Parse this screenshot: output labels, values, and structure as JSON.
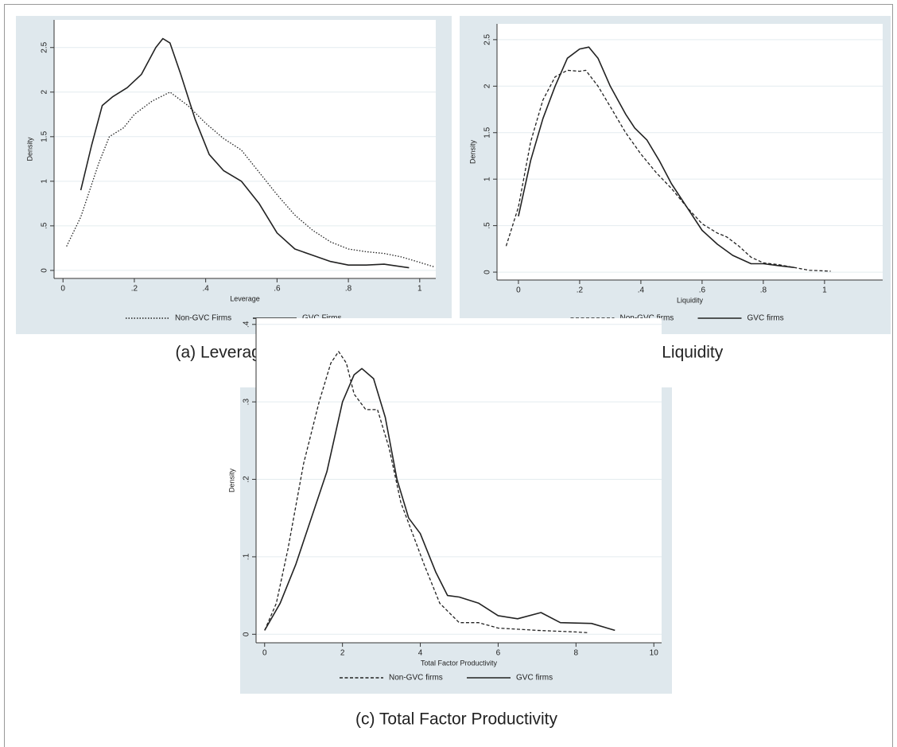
{
  "chart_data": [
    {
      "type": "line",
      "title": "(a) Leverage",
      "xlabel": "Leverage",
      "ylabel": "Density",
      "xlim": [
        -0.025,
        1.045
      ],
      "ylim": [
        -0.09,
        2.81
      ],
      "xticks": [
        0,
        {
          "value": 0.2,
          "label": ".2"
        },
        {
          "value": 0.4,
          "label": ".4"
        },
        {
          "value": 0.6,
          "label": ".6"
        },
        {
          "value": 0.8,
          "label": ".8"
        },
        1
      ],
      "yticks": [
        0,
        {
          "value": 0.5,
          "label": ".5"
        },
        1,
        1.5,
        2,
        2.5
      ],
      "grid": true,
      "legend": "bottom",
      "series": [
        {
          "name": "Non-GVC Firms",
          "color": "#222222",
          "dash": "dotted",
          "x": [
            0.01,
            0.05,
            0.1,
            0.13,
            0.17,
            0.2,
            0.25,
            0.3,
            0.35,
            0.4,
            0.45,
            0.5,
            0.55,
            0.6,
            0.65,
            0.7,
            0.75,
            0.8,
            0.85,
            0.9,
            0.95,
            1.0,
            1.04
          ],
          "values": [
            0.27,
            0.6,
            1.2,
            1.5,
            1.6,
            1.75,
            1.9,
            2.0,
            1.85,
            1.65,
            1.48,
            1.35,
            1.1,
            0.85,
            0.62,
            0.45,
            0.32,
            0.24,
            0.21,
            0.19,
            0.15,
            0.09,
            0.04
          ]
        },
        {
          "name": "GVC Firms",
          "color": "#222222",
          "dash": "solid",
          "x": [
            0.05,
            0.08,
            0.11,
            0.14,
            0.18,
            0.22,
            0.26,
            0.28,
            0.3,
            0.33,
            0.37,
            0.41,
            0.45,
            0.5,
            0.55,
            0.6,
            0.65,
            0.7,
            0.75,
            0.8,
            0.85,
            0.9,
            0.97
          ],
          "values": [
            0.9,
            1.4,
            1.85,
            1.95,
            2.05,
            2.2,
            2.5,
            2.6,
            2.55,
            2.2,
            1.7,
            1.3,
            1.12,
            1.0,
            0.75,
            0.42,
            0.24,
            0.17,
            0.1,
            0.06,
            0.06,
            0.07,
            0.03
          ]
        }
      ]
    },
    {
      "type": "line",
      "title": "(a) Liquidity",
      "xlabel": "Liquidity",
      "ylabel": "Density",
      "xlim": [
        -0.07,
        1.19
      ],
      "ylim": [
        -0.085,
        2.67
      ],
      "xticks": [
        0,
        {
          "value": 0.2,
          "label": ".2"
        },
        {
          "value": 0.4,
          "label": ".4"
        },
        {
          "value": 0.6,
          "label": ".6"
        },
        {
          "value": 0.8,
          "label": ".8"
        },
        1
      ],
      "yticks": [
        0,
        {
          "value": 0.5,
          "label": ".5"
        },
        1,
        1.5,
        2,
        2.5
      ],
      "grid": true,
      "legend": "bottom",
      "series": [
        {
          "name": "Non-GVC firms",
          "color": "#222222",
          "dash": "dashed",
          "x": [
            -0.04,
            0,
            0.04,
            0.08,
            0.12,
            0.16,
            0.2,
            0.22,
            0.26,
            0.3,
            0.35,
            0.4,
            0.45,
            0.5,
            0.55,
            0.6,
            0.65,
            0.68,
            0.72,
            0.76,
            0.8,
            0.85,
            0.9,
            0.95,
            1.02
          ],
          "values": [
            0.28,
            0.7,
            1.4,
            1.85,
            2.1,
            2.17,
            2.16,
            2.17,
            2.0,
            1.78,
            1.5,
            1.27,
            1.07,
            0.9,
            0.7,
            0.52,
            0.42,
            0.38,
            0.28,
            0.16,
            0.1,
            0.08,
            0.05,
            0.02,
            0.01
          ]
        },
        {
          "name": "GVC firms",
          "color": "#222222",
          "dash": "solid",
          "x": [
            0,
            0.04,
            0.08,
            0.12,
            0.16,
            0.2,
            0.23,
            0.26,
            0.3,
            0.35,
            0.38,
            0.42,
            0.46,
            0.5,
            0.55,
            0.6,
            0.65,
            0.7,
            0.76,
            0.8,
            0.85,
            0.9
          ],
          "values": [
            0.6,
            1.2,
            1.65,
            2.0,
            2.3,
            2.4,
            2.42,
            2.3,
            2.0,
            1.7,
            1.55,
            1.42,
            1.2,
            0.95,
            0.7,
            0.45,
            0.3,
            0.18,
            0.09,
            0.09,
            0.07,
            0.05
          ]
        }
      ]
    },
    {
      "type": "line",
      "title": "(c) Total Factor Productivity",
      "xlabel": "Total Factor Productivity",
      "ylabel": "Density",
      "xlim": [
        -0.22,
        10.2
      ],
      "ylim": [
        -0.011,
        0.408
      ],
      "xticks": [
        0,
        2,
        4,
        6,
        8,
        10
      ],
      "yticks": [
        0,
        {
          "value": 0.1,
          "label": ".1"
        },
        {
          "value": 0.2,
          "label": ".2"
        },
        {
          "value": 0.3,
          "label": ".3"
        },
        {
          "value": 0.4,
          "label": ".4"
        }
      ],
      "grid": true,
      "legend": "bottom",
      "series": [
        {
          "name": "Non-GVC firms",
          "color": "#222222",
          "dash": "dashed",
          "x": [
            0,
            0.3,
            0.6,
            1,
            1.4,
            1.7,
            1.9,
            2.1,
            2.3,
            2.6,
            2.9,
            3.2,
            3.5,
            3.8,
            4.1,
            4.5,
            5,
            5.5,
            6,
            7,
            8,
            8.3
          ],
          "values": [
            0.005,
            0.04,
            0.11,
            0.22,
            0.3,
            0.35,
            0.365,
            0.35,
            0.31,
            0.29,
            0.29,
            0.24,
            0.17,
            0.13,
            0.09,
            0.04,
            0.015,
            0.015,
            0.008,
            0.005,
            0.003,
            0.002
          ]
        },
        {
          "name": "GVC firms",
          "color": "#222222",
          "dash": "solid",
          "x": [
            0,
            0.4,
            0.8,
            1.2,
            1.6,
            2,
            2.3,
            2.5,
            2.8,
            3.1,
            3.4,
            3.7,
            4,
            4.4,
            4.7,
            5,
            5.5,
            6,
            6.5,
            7.1,
            7.6,
            8.4,
            9
          ],
          "values": [
            0.005,
            0.04,
            0.09,
            0.15,
            0.21,
            0.3,
            0.335,
            0.343,
            0.33,
            0.28,
            0.2,
            0.15,
            0.13,
            0.08,
            0.05,
            0.048,
            0.04,
            0.024,
            0.02,
            0.028,
            0.015,
            0.014,
            0.005
          ]
        }
      ]
    }
  ]
}
